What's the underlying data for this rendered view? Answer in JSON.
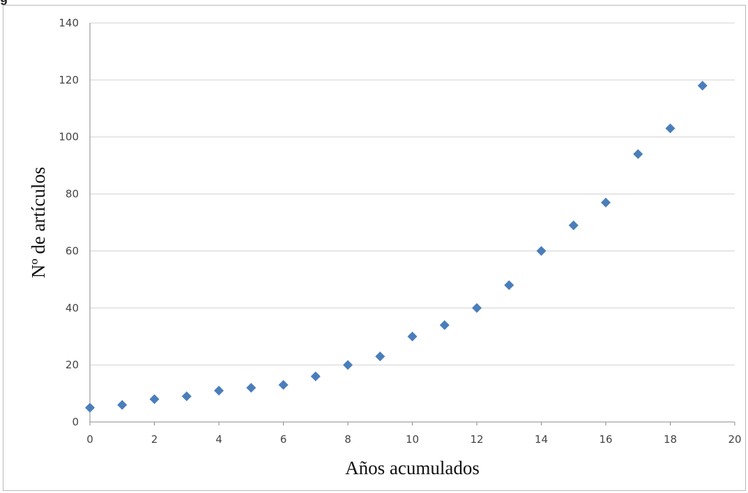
{
  "caption": {
    "text": "g"
  },
  "chart_data": {
    "type": "scatter",
    "title": "",
    "xlabel": "Años acumulados",
    "ylabel": "Nº de artículos",
    "xlim": [
      0,
      20
    ],
    "ylim": [
      0,
      140
    ],
    "xticks": [
      0,
      2,
      4,
      6,
      8,
      10,
      12,
      14,
      16,
      18,
      20
    ],
    "yticks": [
      0,
      20,
      40,
      60,
      80,
      100,
      120,
      140
    ],
    "grid": true,
    "marker": "diamond",
    "marker_color": "#4a7ebb",
    "gridline_color": "#d0d0d0",
    "series": [
      {
        "x": [
          0,
          1,
          2,
          3,
          4,
          5,
          6,
          7,
          8,
          9,
          10,
          11,
          12,
          13,
          14,
          15,
          16,
          17,
          18,
          19
        ],
        "y": [
          5,
          6,
          8,
          9,
          11,
          12,
          13,
          16,
          20,
          23,
          30,
          34,
          40,
          48,
          60,
          69,
          77,
          94,
          103,
          118
        ]
      }
    ]
  }
}
